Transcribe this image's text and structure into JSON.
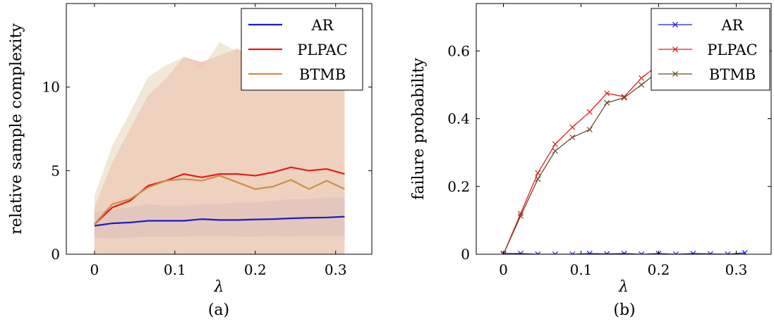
{
  "chart_data": [
    {
      "type": "line",
      "caption": "(a)",
      "xlabel": "λ",
      "ylabel": "relative sample complexity",
      "xlim": [
        -0.035,
        0.345
      ],
      "ylim": [
        0,
        15
      ],
      "xticks": [
        0,
        0.1,
        0.2,
        0.3
      ],
      "xtick_labels": [
        "0",
        "0.1",
        "0.2",
        "0.3"
      ],
      "yticks": [
        0,
        5,
        10
      ],
      "ytick_labels": [
        "0",
        "5",
        "10"
      ],
      "legend_position": "top-right",
      "x": [
        0,
        0.0222,
        0.0444,
        0.0667,
        0.0889,
        0.1111,
        0.1333,
        0.1556,
        0.1778,
        0.2,
        0.2222,
        0.2444,
        0.2667,
        0.2889,
        0.3111
      ],
      "series": [
        {
          "name": "AR",
          "color": "#1a1acc",
          "band_color": "#8a8ae6",
          "values": [
            1.7,
            1.85,
            1.9,
            2.0,
            2.0,
            2.0,
            2.1,
            2.05,
            2.05,
            2.08,
            2.1,
            2.15,
            2.18,
            2.2,
            2.25
          ],
          "lower": [
            1.0,
            0.95,
            1.0,
            1.05,
            1.05,
            1.05,
            1.1,
            1.1,
            1.05,
            1.05,
            1.1,
            1.05,
            1.1,
            1.1,
            1.1
          ],
          "upper": [
            2.5,
            2.7,
            2.8,
            3.0,
            2.9,
            2.9,
            3.0,
            3.0,
            3.1,
            3.1,
            3.2,
            3.3,
            3.3,
            3.4,
            3.4
          ]
        },
        {
          "name": "PLPAC",
          "color": "#e8191b",
          "band_color": "#f2a090",
          "values": [
            1.8,
            2.8,
            3.2,
            4.1,
            4.4,
            4.8,
            4.6,
            4.8,
            4.8,
            4.7,
            4.9,
            5.2,
            5.0,
            5.1,
            4.8
          ],
          "lower": [
            0,
            0,
            0,
            0,
            0,
            0,
            0,
            0,
            0,
            0,
            0,
            0,
            0,
            0,
            0
          ],
          "upper": [
            2.8,
            5.5,
            7.5,
            9.5,
            10.5,
            11.8,
            11.5,
            11.9,
            12.3,
            11.7,
            11.3,
            11.2,
            11.3,
            11.5,
            11.5
          ]
        },
        {
          "name": "BTMB",
          "color": "#c8904a",
          "band_color": "#e8d8c0",
          "values": [
            1.8,
            3.0,
            3.3,
            4.0,
            4.4,
            4.5,
            4.4,
            4.7,
            4.3,
            3.9,
            4.05,
            4.45,
            3.9,
            4.4,
            3.9
          ],
          "lower": [
            0,
            0,
            0,
            0,
            0,
            0,
            0,
            0,
            0,
            0,
            0,
            0,
            0,
            0,
            0
          ],
          "upper": [
            3.5,
            6.5,
            8.5,
            10.6,
            11.3,
            11.8,
            11.1,
            12.7,
            12.1,
            12.4,
            11.8,
            11.3,
            11.4,
            11.6,
            11.5
          ]
        }
      ]
    },
    {
      "type": "line",
      "caption": "(b)",
      "xlabel": "λ",
      "ylabel": "failure probability",
      "xlim": [
        -0.035,
        0.345
      ],
      "ylim": [
        0,
        0.74
      ],
      "xticks": [
        0,
        0.1,
        0.2,
        0.3
      ],
      "xtick_labels": [
        "0",
        "0.1",
        "0.2",
        "0.3"
      ],
      "yticks": [
        0,
        0.2,
        0.4,
        0.6
      ],
      "ytick_labels": [
        "0",
        "0.2",
        "0.4",
        "0.6"
      ],
      "legend_position": "top-right",
      "marker": "x",
      "x": [
        0,
        0.0222,
        0.0444,
        0.0667,
        0.0889,
        0.1111,
        0.1333,
        0.1556,
        0.1778,
        0.2,
        0.2222,
        0.2444,
        0.2667,
        0.2889,
        0.3111
      ],
      "series": [
        {
          "name": "AR",
          "color": "#1a1aee",
          "values": [
            0.002,
            0.002,
            0,
            0,
            0,
            0.002,
            0.001,
            0.002,
            0,
            0.002,
            0,
            0.002,
            0.001,
            0,
            0.004
          ]
        },
        {
          "name": "PLPAC",
          "color": "#e8191b",
          "values": [
            0,
            0.12,
            0.24,
            0.325,
            0.375,
            0.42,
            0.475,
            0.465,
            0.52,
            0.56,
            0.6,
            0.61,
            0.63,
            0.64,
            0.66
          ]
        },
        {
          "name": "BTMB",
          "color": "#6b4a2a",
          "values": [
            0,
            0.113,
            0.222,
            0.305,
            0.345,
            0.368,
            0.447,
            0.462,
            0.5,
            0.54,
            0.58,
            0.6,
            0.62,
            0.63,
            0.65
          ]
        }
      ]
    }
  ]
}
